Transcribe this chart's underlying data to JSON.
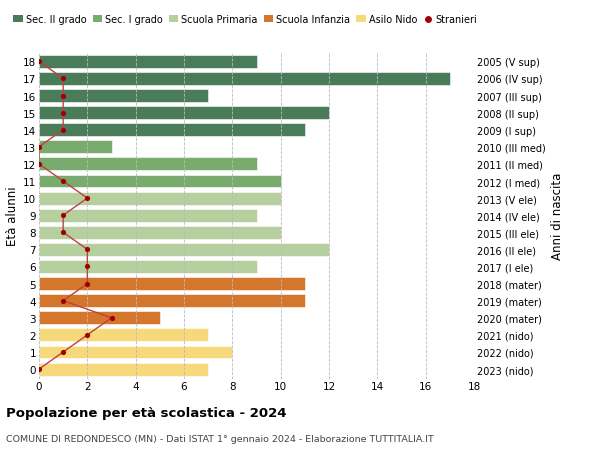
{
  "ages": [
    18,
    17,
    16,
    15,
    14,
    13,
    12,
    11,
    10,
    9,
    8,
    7,
    6,
    5,
    4,
    3,
    2,
    1,
    0
  ],
  "years": [
    "2005 (V sup)",
    "2006 (IV sup)",
    "2007 (III sup)",
    "2008 (II sup)",
    "2009 (I sup)",
    "2010 (III med)",
    "2011 (II med)",
    "2012 (I med)",
    "2013 (V ele)",
    "2014 (IV ele)",
    "2015 (III ele)",
    "2016 (II ele)",
    "2017 (I ele)",
    "2018 (mater)",
    "2019 (mater)",
    "2020 (mater)",
    "2021 (nido)",
    "2022 (nido)",
    "2023 (nido)"
  ],
  "bar_values": [
    9,
    17,
    7,
    12,
    11,
    3,
    9,
    10,
    10,
    9,
    10,
    12,
    9,
    11,
    11,
    5,
    7,
    8,
    7
  ],
  "bar_colors": [
    "#4a7c59",
    "#4a7c59",
    "#4a7c59",
    "#4a7c59",
    "#4a7c59",
    "#7aab6e",
    "#7aab6e",
    "#7aab6e",
    "#b5cf9e",
    "#b5cf9e",
    "#b5cf9e",
    "#b5cf9e",
    "#b5cf9e",
    "#d4762b",
    "#d4762b",
    "#d4762b",
    "#f5d97a",
    "#f5d97a",
    "#f5d97a"
  ],
  "stranieri_values": [
    0,
    1,
    1,
    1,
    1,
    0,
    0,
    1,
    2,
    1,
    1,
    2,
    2,
    2,
    1,
    3,
    2,
    1,
    0
  ],
  "stranieri_color": "#a00000",
  "stranieri_line_color": "#c04040",
  "legend_labels": [
    "Sec. II grado",
    "Sec. I grado",
    "Scuola Primaria",
    "Scuola Infanzia",
    "Asilo Nido",
    "Stranieri"
  ],
  "legend_colors": [
    "#4a7c59",
    "#7aab6e",
    "#b5cf9e",
    "#d4762b",
    "#f5d97a",
    "#a00000"
  ],
  "ylabel_left": "Età alunni",
  "ylabel_right": "Anni di nascita",
  "title": "Popolazione per età scolastica - 2024",
  "subtitle": "COMUNE DI REDONDESCO (MN) - Dati ISTAT 1° gennaio 2024 - Elaborazione TUTTITALIA.IT",
  "xlim": [
    0,
    18
  ],
  "bar_height": 0.75,
  "bg_color": "#ffffff",
  "grid_color": "#bbbbbb"
}
